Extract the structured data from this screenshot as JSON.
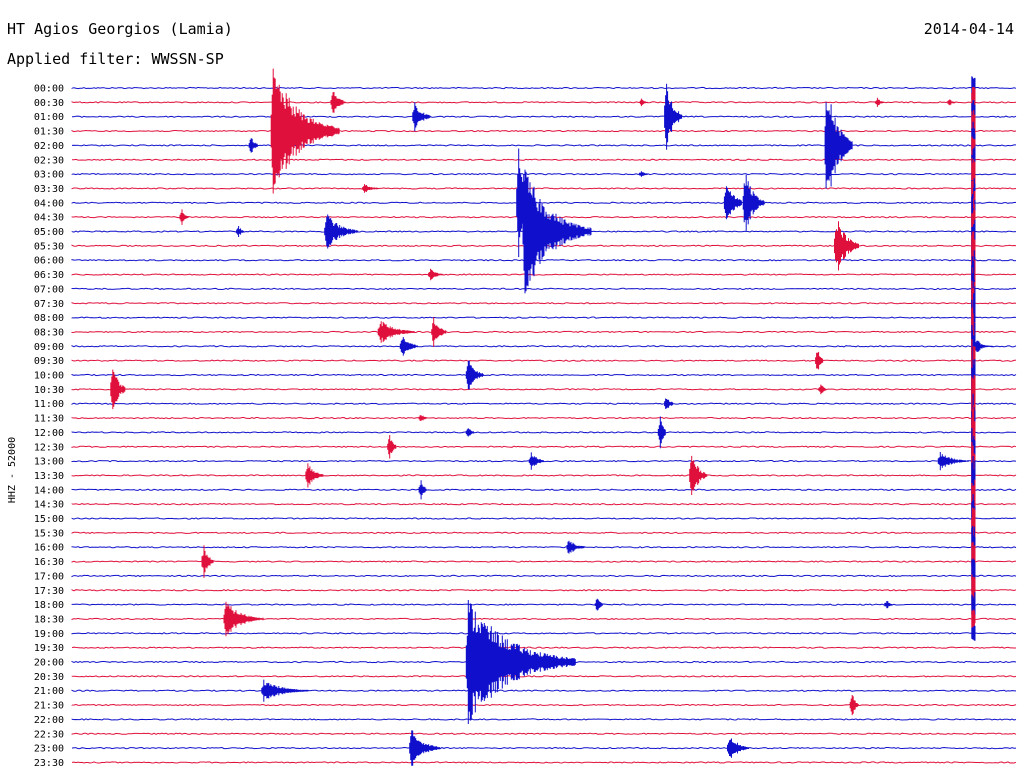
{
  "header": {
    "title": "HT Agios Georgios (Lamia)",
    "date": "2014-04-14",
    "filter": "Applied filter: WWSSN-SP"
  },
  "colors": {
    "trace_a": "#1010cc",
    "trace_b": "#e0103c"
  },
  "chart_data": {
    "type": "line",
    "ylabel": "HHZ - 52000",
    "tick_labels": [
      "00:00",
      "00:30",
      "01:00",
      "01:30",
      "02:00",
      "02:30",
      "03:00",
      "03:30",
      "04:00",
      "04:30",
      "05:00",
      "05:30",
      "06:00",
      "06:30",
      "07:00",
      "07:30",
      "08:00",
      "08:30",
      "09:00",
      "09:30",
      "10:00",
      "10:30",
      "11:00",
      "11:30",
      "12:00",
      "12:30",
      "13:00",
      "13:30",
      "14:00",
      "14:30",
      "15:00",
      "15:30",
      "16:00",
      "16:30",
      "17:00",
      "17:30",
      "18:00",
      "18:30",
      "19:00",
      "19:30",
      "20:00",
      "20:30",
      "21:00",
      "21:30",
      "22:00",
      "22:30",
      "23:00",
      "23:30"
    ],
    "x_unit": "minutes within each 30-min line",
    "x_range": [
      0,
      30
    ],
    "events": [
      {
        "line": 1,
        "t": 8.2,
        "amp": 1.0,
        "dur": 0.5
      },
      {
        "line": 1,
        "t": 18.0,
        "amp": 0.3,
        "dur": 0.3
      },
      {
        "line": 1,
        "t": 25.5,
        "amp": 0.4,
        "dur": 0.3
      },
      {
        "line": 1,
        "t": 27.8,
        "amp": 0.3,
        "dur": 0.2
      },
      {
        "line": 2,
        "t": 10.8,
        "amp": 1.2,
        "dur": 0.6
      },
      {
        "line": 2,
        "t": 18.8,
        "amp": 2.6,
        "dur": 0.6
      },
      {
        "line": 3,
        "t": 6.3,
        "amp": 5.0,
        "dur": 2.2
      },
      {
        "line": 4,
        "t": 5.6,
        "amp": 0.8,
        "dur": 0.3
      },
      {
        "line": 4,
        "t": 23.9,
        "amp": 5.0,
        "dur": 0.9
      },
      {
        "line": 6,
        "t": 18.0,
        "amp": 0.3,
        "dur": 0.3
      },
      {
        "line": 7,
        "t": 9.2,
        "amp": 0.4,
        "dur": 0.6
      },
      {
        "line": 8,
        "t": 14.1,
        "amp": 5.0,
        "dur": 0.6
      },
      {
        "line": 8,
        "t": 20.7,
        "amp": 2.0,
        "dur": 0.6
      },
      {
        "line": 8,
        "t": 21.3,
        "amp": 2.5,
        "dur": 0.7
      },
      {
        "line": 9,
        "t": 3.4,
        "amp": 0.6,
        "dur": 0.3
      },
      {
        "line": 10,
        "t": 8.0,
        "amp": 1.5,
        "dur": 1.1
      },
      {
        "line": 10,
        "t": 5.2,
        "amp": 0.5,
        "dur": 0.2
      },
      {
        "line": 10,
        "t": 14.3,
        "amp": 5.0,
        "dur": 2.2
      },
      {
        "line": 11,
        "t": 24.2,
        "amp": 2.5,
        "dur": 0.8
      },
      {
        "line": 13,
        "t": 11.3,
        "amp": 0.5,
        "dur": 0.5
      },
      {
        "line": 17,
        "t": 9.7,
        "amp": 1.0,
        "dur": 1.2
      },
      {
        "line": 17,
        "t": 11.4,
        "amp": 1.2,
        "dur": 0.5
      },
      {
        "line": 18,
        "t": 10.4,
        "amp": 0.9,
        "dur": 0.6
      },
      {
        "line": 19,
        "t": 23.6,
        "amp": 1.0,
        "dur": 0.2
      },
      {
        "line": 20,
        "t": 12.5,
        "amp": 1.3,
        "dur": 0.6
      },
      {
        "line": 21,
        "t": 1.2,
        "amp": 2.0,
        "dur": 0.5
      },
      {
        "line": 21,
        "t": 23.7,
        "amp": 0.5,
        "dur": 0.2
      },
      {
        "line": 22,
        "t": 18.8,
        "amp": 0.7,
        "dur": 0.3
      },
      {
        "line": 23,
        "t": 11.0,
        "amp": 0.4,
        "dur": 0.2
      },
      {
        "line": 24,
        "t": 12.5,
        "amp": 0.6,
        "dur": 0.2
      },
      {
        "line": 24,
        "t": 18.6,
        "amp": 1.4,
        "dur": 0.2
      },
      {
        "line": 25,
        "t": 10.0,
        "amp": 1.0,
        "dur": 0.3
      },
      {
        "line": 26,
        "t": 14.5,
        "amp": 0.8,
        "dur": 0.5
      },
      {
        "line": 26,
        "t": 27.5,
        "amp": 0.7,
        "dur": 1.0
      },
      {
        "line": 27,
        "t": 7.4,
        "amp": 1.0,
        "dur": 0.6
      },
      {
        "line": 27,
        "t": 19.6,
        "amp": 1.8,
        "dur": 0.6
      },
      {
        "line": 28,
        "t": 11.0,
        "amp": 0.8,
        "dur": 0.2
      },
      {
        "line": 32,
        "t": 15.7,
        "amp": 0.7,
        "dur": 0.6
      },
      {
        "line": 33,
        "t": 4.1,
        "amp": 1.3,
        "dur": 0.4
      },
      {
        "line": 36,
        "t": 16.6,
        "amp": 0.6,
        "dur": 0.2
      },
      {
        "line": 36,
        "t": 25.8,
        "amp": 0.4,
        "dur": 0.2
      },
      {
        "line": 37,
        "t": 4.8,
        "amp": 1.4,
        "dur": 1.3
      },
      {
        "line": 40,
        "t": 12.5,
        "amp": 5.0,
        "dur": 3.5
      },
      {
        "line": 42,
        "t": 6.0,
        "amp": 0.9,
        "dur": 1.5
      },
      {
        "line": 43,
        "t": 24.7,
        "amp": 1.0,
        "dur": 0.3
      },
      {
        "line": 46,
        "t": 10.7,
        "amp": 1.5,
        "dur": 1.0
      },
      {
        "line": 46,
        "t": 20.8,
        "amp": 1.2,
        "dur": 0.7
      }
    ],
    "big_event": {
      "t": 28.6,
      "line_start": 0,
      "line_end": 38,
      "peak_line": 18
    }
  }
}
